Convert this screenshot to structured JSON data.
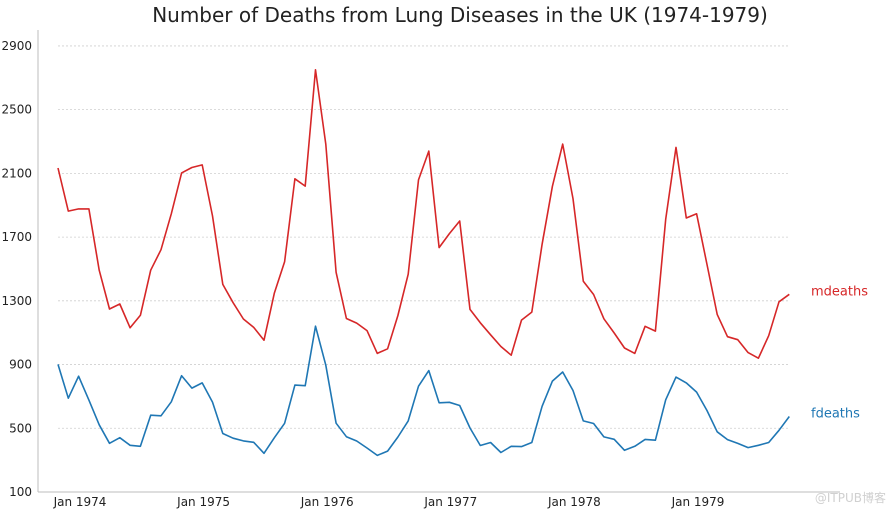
{
  "chart_data": {
    "type": "line",
    "title": "Number of Deaths from Lung Diseases in the UK (1974-1979)",
    "xlabel": "",
    "ylabel": "",
    "ylim": [
      100,
      3000
    ],
    "y_ticks": [
      100,
      500,
      900,
      1300,
      1700,
      2100,
      2500,
      2900
    ],
    "x_ticks": [
      "Jan 1974",
      "Jan 1975",
      "Jan 1976",
      "Jan 1977",
      "Jan 1978",
      "Jan 1979"
    ],
    "x": [
      "1974-01",
      "1974-02",
      "1974-03",
      "1974-04",
      "1974-05",
      "1974-06",
      "1974-07",
      "1974-08",
      "1974-09",
      "1974-10",
      "1974-11",
      "1974-12",
      "1975-01",
      "1975-02",
      "1975-03",
      "1975-04",
      "1975-05",
      "1975-06",
      "1975-07",
      "1975-08",
      "1975-09",
      "1975-10",
      "1975-11",
      "1975-12",
      "1976-01",
      "1976-02",
      "1976-03",
      "1976-04",
      "1976-05",
      "1976-06",
      "1976-07",
      "1976-08",
      "1976-09",
      "1976-10",
      "1976-11",
      "1976-12",
      "1977-01",
      "1977-02",
      "1977-03",
      "1977-04",
      "1977-05",
      "1977-06",
      "1977-07",
      "1977-08",
      "1977-09",
      "1977-10",
      "1977-11",
      "1977-12",
      "1978-01",
      "1978-02",
      "1978-03",
      "1978-04",
      "1978-05",
      "1978-06",
      "1978-07",
      "1978-08",
      "1978-09",
      "1978-10",
      "1978-11",
      "1978-12",
      "1979-01",
      "1979-02",
      "1979-03",
      "1979-04",
      "1979-05",
      "1979-06",
      "1979-07",
      "1979-08",
      "1979-09",
      "1979-10",
      "1979-11",
      "1979-12"
    ],
    "grid": true,
    "series": [
      {
        "name": "mdeaths",
        "color": "#d62728",
        "values": [
          2134,
          1863,
          1877,
          1877,
          1492,
          1249,
          1280,
          1131,
          1209,
          1492,
          1621,
          1846,
          2103,
          2137,
          2153,
          1833,
          1403,
          1288,
          1186,
          1133,
          1053,
          1347,
          1545,
          2066,
          2020,
          2750,
          2283,
          1479,
          1189,
          1160,
          1113,
          970,
          999,
          1208,
          1467,
          2059,
          2240,
          1634,
          1722,
          1801,
          1246,
          1162,
          1087,
          1013,
          959,
          1179,
          1229,
          1655,
          2019,
          2284,
          1942,
          1423,
          1340,
          1187,
          1098,
          1004,
          970,
          1140,
          1110,
          1812,
          2263,
          1820,
          1846,
          1531,
          1215,
          1075,
          1056,
          975,
          940,
          1081,
          1294,
          1341
        ]
      },
      {
        "name": "fdeaths",
        "color": "#1f77b4",
        "values": [
          901,
          689,
          827,
          677,
          522,
          406,
          441,
          393,
          387,
          582,
          578,
          666,
          830,
          752,
          785,
          664,
          467,
          438,
          421,
          412,
          343,
          440,
          531,
          771,
          767,
          1141,
          896,
          532,
          447,
          420,
          376,
          330,
          357,
          445,
          546,
          764,
          862,
          660,
          663,
          643,
          502,
          392,
          411,
          348,
          387,
          385,
          411,
          638,
          796,
          853,
          737,
          546,
          530,
          446,
          431,
          362,
          387,
          430,
          425,
          679,
          821,
          785,
          727,
          612,
          478,
          429,
          405,
          379,
          393,
          411,
          487,
          574
        ]
      }
    ],
    "legend": "right-of-lines"
  },
  "watermark": "@ITPUB博客"
}
